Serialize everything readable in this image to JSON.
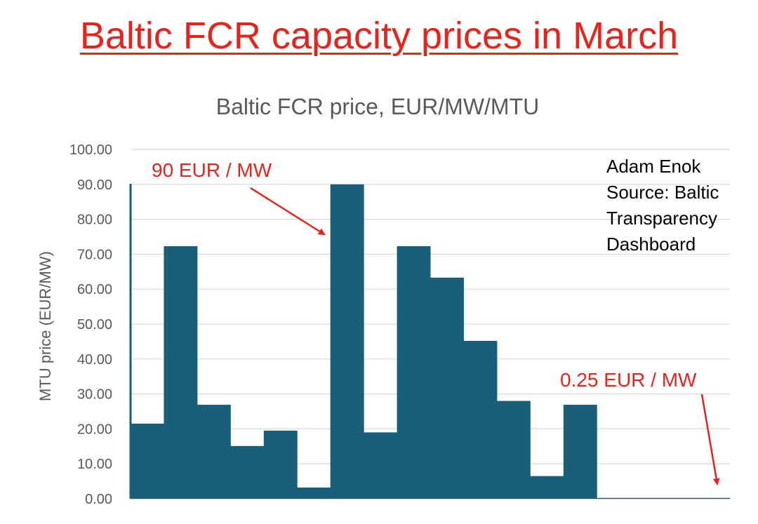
{
  "headline": "Baltic FCR capacity prices in March",
  "chart_data": {
    "type": "bar",
    "title": "Baltic FCR price, EUR/MW/MTU",
    "xlabel": "",
    "ylabel": "MTU price (EUR/MW)",
    "ylim": [
      0,
      100
    ],
    "yticks": [
      "0.00",
      "10.00",
      "20.00",
      "30.00",
      "40.00",
      "50.00",
      "60.00",
      "70.00",
      "80.00",
      "90.00",
      "100.00"
    ],
    "grid": true,
    "values": [
      21.5,
      72.3,
      26.9,
      15.1,
      19.5,
      3.2,
      90.0,
      19.0,
      72.3,
      63.3,
      45.2,
      28.0,
      6.5,
      26.9,
      0.25,
      0.25,
      0.25,
      0.25
    ],
    "bar_color": "#1a5f7a",
    "annotations": [
      {
        "text": "90 EUR / MW",
        "color": "#e8231b",
        "target_index": 6
      },
      {
        "text": "0.25 EUR / MW",
        "color": "#e8231b",
        "target_index": 17
      }
    ],
    "source_note": [
      "Adam Enok",
      "Source: Baltic",
      "Transparency",
      "Dashboard"
    ]
  }
}
